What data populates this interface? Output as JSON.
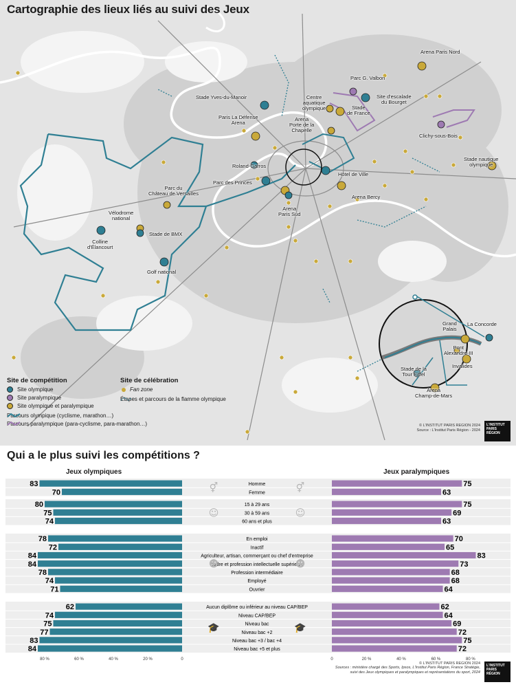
{
  "map": {
    "title": "Cartographie des lieux liés au suivi des Jeux",
    "labels": [
      {
        "text": "Arena Paris Nord"
      },
      {
        "text": "Parc G. Valbon"
      },
      {
        "text": "Site d'escalade\ndu Bourget"
      },
      {
        "text": "Centre\naquatique\nolympique"
      },
      {
        "text": "Stade\nde France"
      },
      {
        "text": "Stade Yves-du-Manoir"
      },
      {
        "text": "Paris La Défense\nArena"
      },
      {
        "text": "Arena\nPorte de la\nChapelle"
      },
      {
        "text": "Clichy-sous-Bois"
      },
      {
        "text": "Roland-Garros"
      },
      {
        "text": "Hôtel de Ville"
      },
      {
        "text": "Stade nautique\nolympique"
      },
      {
        "text": "Parc des Princes"
      },
      {
        "text": "Arena Bercy"
      },
      {
        "text": "Parc du\nChâteau de Versailles"
      },
      {
        "text": "Arena\nParis Sud"
      },
      {
        "text": "Vélodrome\nnational"
      },
      {
        "text": "Stade de BMX"
      },
      {
        "text": "Colline\nd'Élancourt"
      },
      {
        "text": "Golf national"
      },
      {
        "text": "Grand\nPalais"
      },
      {
        "text": "La Concorde"
      },
      {
        "text": "Pont\nAlexandre-III"
      },
      {
        "text": "Invalides"
      },
      {
        "text": "Stade de la\nTour Eiffel"
      },
      {
        "text": "Arena\nChamp-de-Mars"
      }
    ],
    "legend": {
      "competition_title": "Site de compétition",
      "olympic": "Site olympique",
      "paralympic": "Site paralympique",
      "both": "Site olympique et paralympique",
      "route_olympic": "Parcours olympique (cyclisme, marathon…)",
      "route_paralympic": "Parcours paralympique (para-cyclisme, para-marathon…)",
      "celebration_title": "Site de célébration",
      "fanzone": "Fan zone",
      "flame": "Étapes et parcours de la flamme olympique"
    },
    "credit": "© L'INSTITUT PARIS REGION 2024\nSource : L'Institut Paris Région - 2024"
  },
  "logo_text": "L'INSTITUT\nPARIS\nRÉGION",
  "colors": {
    "olympic": "#2f7f93",
    "paralympic": "#9e7ab2",
    "both": "#c9a93a",
    "row_bg": "#eeeeee"
  },
  "chart_data": {
    "type": "bar",
    "title": "Qui a le plus suivi les compétitions ?",
    "series_names": [
      "Jeux olympiques",
      "Jeux paralympiques"
    ],
    "axis_ticks": [
      "80 %",
      "60 %",
      "40 %",
      "20 %",
      "0"
    ],
    "xlim": [
      0,
      80
    ],
    "groups": [
      {
        "icon": "gender-icon",
        "categories": [
          "Homme",
          "Femme"
        ],
        "olympiques": [
          83,
          70
        ],
        "paralympiques": [
          75,
          63
        ]
      },
      {
        "icon": "age-icon",
        "categories": [
          "15 à 29 ans",
          "30 à 59 ans",
          "60 ans et plus"
        ],
        "olympiques": [
          80,
          75,
          74
        ],
        "paralympiques": [
          75,
          69,
          63
        ]
      },
      {
        "icon": "workers-icon",
        "categories": [
          "En emploi",
          "Inactif",
          "Agriculteur, artisan, commerçant ou chef d'entreprise",
          "Cadre et profession intellectuelle supérieure",
          "Profession intermédiaire",
          "Employé",
          "Ouvrier"
        ],
        "olympiques": [
          78,
          72,
          84,
          84,
          78,
          74,
          71
        ],
        "paralympiques": [
          70,
          65,
          83,
          73,
          68,
          68,
          64
        ]
      },
      {
        "icon": "graduation-icon",
        "categories": [
          "Aucun diplôme ou inférieur au niveau CAP/BEP",
          "Niveau CAP/BEP",
          "Niveau bac",
          "Niveau bac +2",
          "Niveau bac +3 / bac +4",
          "Niveau bac +5 et plus"
        ],
        "olympiques": [
          62,
          74,
          75,
          77,
          83,
          84
        ],
        "paralympiques": [
          62,
          64,
          69,
          72,
          75,
          72
        ]
      }
    ]
  },
  "sources": "Sources : ministère chargé des Sports, Ipsos, L'Institut Paris Région, France Stratégie,\nsuivi des Jeux olympiques et paralympiques et représentations du sport, 2024",
  "credit2": "© L'INSTITUT PARIS REGION 2024"
}
